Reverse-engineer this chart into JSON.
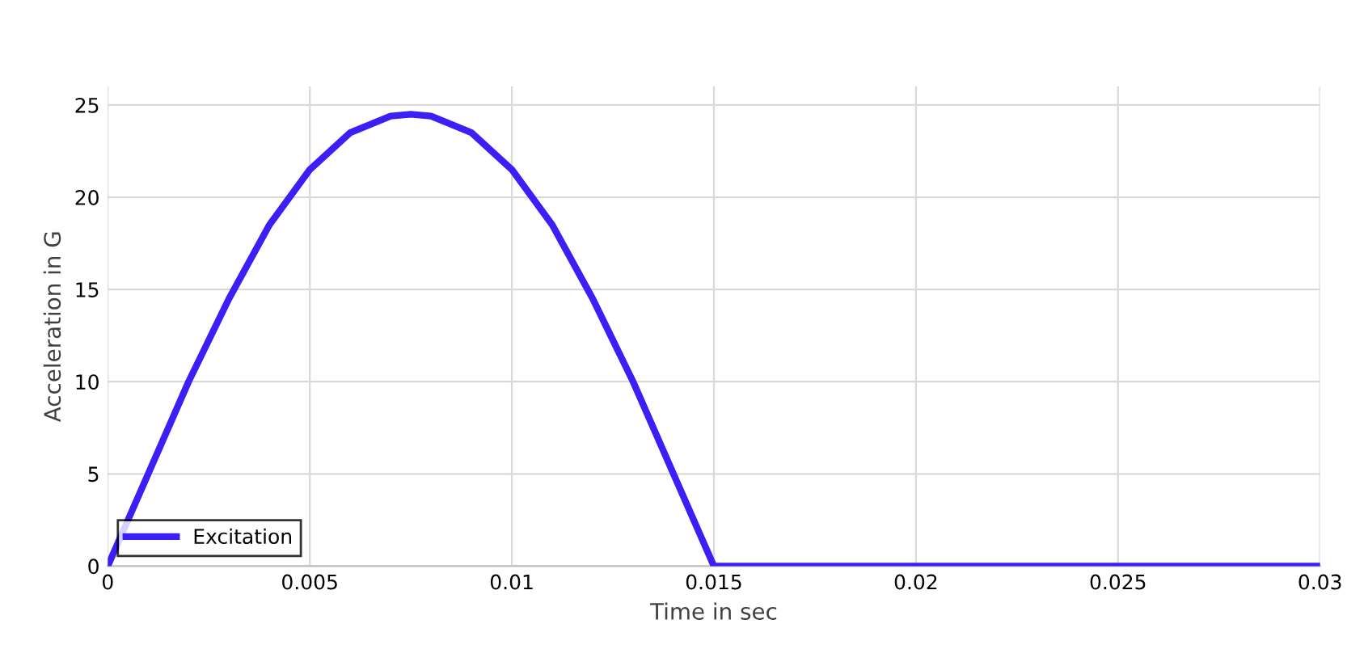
{
  "chart_data": {
    "type": "line",
    "xlabel": "Time in sec",
    "ylabel": "Acceleration in G",
    "series": [
      {
        "name": "Excitation",
        "color": "#3b1ff5",
        "x": [
          0,
          0.001,
          0.002,
          0.003,
          0.004,
          0.005,
          0.006,
          0.007,
          0.0075,
          0.008,
          0.009,
          0.01,
          0.011,
          0.012,
          0.013,
          0.014,
          0.0148,
          0.015,
          0.02,
          0.025,
          0.03
        ],
        "values": [
          0,
          5,
          10,
          14.5,
          18.5,
          21.5,
          23.5,
          24.4,
          24.5,
          24.4,
          23.5,
          21.5,
          18.5,
          14.5,
          10,
          5,
          1,
          0,
          0,
          0,
          0
        ]
      }
    ],
    "xlim": [
      0,
      0.03
    ],
    "xticks": [
      0,
      0.005,
      0.01,
      0.015,
      0.02,
      0.025,
      0.03
    ],
    "ylim": [
      0,
      26
    ],
    "yticks": [
      0,
      5,
      10,
      15,
      20,
      25
    ],
    "grid": true,
    "legend": "bottom left",
    "marker": "none",
    "line_style": "solid"
  }
}
